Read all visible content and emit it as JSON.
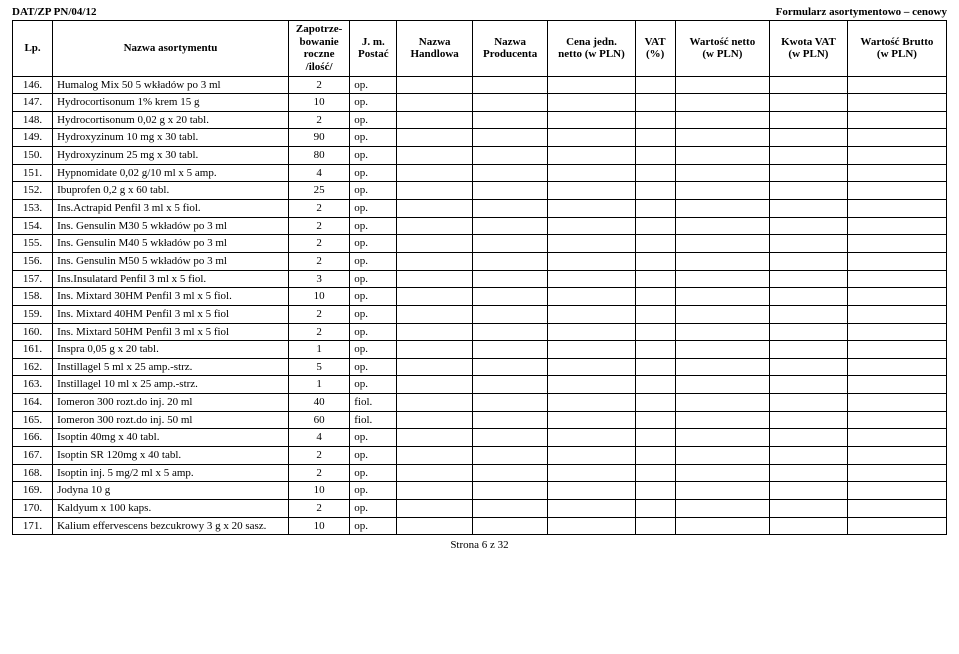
{
  "header": {
    "left": "DAT/ZP PN/04/12",
    "right": "Formularz asortymentowo – cenowy"
  },
  "columns": [
    "Lp.",
    "Nazwa asortymentu",
    "Zapotrze-\nbowanie\nroczne\n/ilość/",
    "J. m.\nPostać",
    "Nazwa\nHandlowa",
    "Nazwa\nProducenta",
    "Cena jedn.\nnetto (w PLN)",
    "VAT\n(%)",
    "Wartość netto\n(w PLN)",
    "Kwota VAT\n(w PLN)",
    "Wartość Brutto\n(w PLN)"
  ],
  "rows": [
    {
      "lp": "146.",
      "name": "Humalog Mix 50 5 wkładów po 3 ml",
      "qty": "2",
      "unit": "op."
    },
    {
      "lp": "147.",
      "name": "Hydrocortisonum 1% krem 15 g",
      "qty": "10",
      "unit": "op."
    },
    {
      "lp": "148.",
      "name": "Hydrocortisonum 0,02 g x 20 tabl.",
      "qty": "2",
      "unit": "op."
    },
    {
      "lp": "149.",
      "name": "Hydroxyzinum 10 mg x 30 tabl.",
      "qty": "90",
      "unit": "op."
    },
    {
      "lp": "150.",
      "name": "Hydroxyzinum 25 mg x 30 tabl.",
      "qty": "80",
      "unit": "op."
    },
    {
      "lp": "151.",
      "name": "Hypnomidate 0,02 g/10 ml x 5 amp.",
      "qty": "4",
      "unit": "op."
    },
    {
      "lp": "152.",
      "name": "Ibuprofen 0,2 g x 60 tabl.",
      "qty": "25",
      "unit": "op."
    },
    {
      "lp": "153.",
      "name": "Ins.Actrapid Penfil 3 ml x 5 fiol.",
      "qty": "2",
      "unit": "op."
    },
    {
      "lp": "154.",
      "name": "Ins. Gensulin M30 5 wkładów po 3 ml",
      "qty": "2",
      "unit": "op."
    },
    {
      "lp": "155.",
      "name": "Ins. Gensulin M40 5 wkładów po 3 ml",
      "qty": "2",
      "unit": "op."
    },
    {
      "lp": "156.",
      "name": "Ins. Gensulin M50 5 wkładów po 3 ml",
      "qty": "2",
      "unit": "op."
    },
    {
      "lp": "157.",
      "name": "Ins.Insulatard Penfil 3 ml x 5 fiol.",
      "qty": "3",
      "unit": "op."
    },
    {
      "lp": "158.",
      "name": "Ins. Mixtard 30HM Penfil 3 ml x 5 fiol.",
      "qty": "10",
      "unit": "op."
    },
    {
      "lp": "159.",
      "name": "Ins. Mixtard 40HM Penfil 3 ml x 5 fiol",
      "qty": "2",
      "unit": "op."
    },
    {
      "lp": "160.",
      "name": "Ins. Mixtard 50HM Penfil 3 ml x 5 fiol",
      "qty": "2",
      "unit": "op."
    },
    {
      "lp": "161.",
      "name": "Inspra 0,05 g x 20 tabl.",
      "qty": "1",
      "unit": "op."
    },
    {
      "lp": "162.",
      "name": "Instillagel 5 ml x 25 amp.-strz.",
      "qty": "5",
      "unit": "op."
    },
    {
      "lp": "163.",
      "name": "Instillagel 10 ml x 25 amp.-strz.",
      "qty": "1",
      "unit": "op."
    },
    {
      "lp": "164.",
      "name": "Iomeron 300 rozt.do inj. 20 ml",
      "qty": "40",
      "unit": "fiol."
    },
    {
      "lp": "165.",
      "name": "Iomeron 300 rozt.do inj. 50 ml",
      "qty": "60",
      "unit": "fiol."
    },
    {
      "lp": "166.",
      "name": "Isoptin 40mg x 40 tabl.",
      "qty": "4",
      "unit": "op."
    },
    {
      "lp": "167.",
      "name": "Isoptin SR 120mg x 40 tabl.",
      "qty": "2",
      "unit": "op."
    },
    {
      "lp": "168.",
      "name": "Isoptin inj. 5 mg/2 ml x 5 amp.",
      "qty": "2",
      "unit": "op."
    },
    {
      "lp": "169.",
      "name": "Jodyna 10 g",
      "qty": "10",
      "unit": "op."
    },
    {
      "lp": "170.",
      "name": "Kaldyum x 100 kaps.",
      "qty": "2",
      "unit": "op."
    },
    {
      "lp": "171.",
      "name": "Kalium effervescens bezcukrowy 3 g x 20 sasz.",
      "qty": "10",
      "unit": "op."
    }
  ],
  "footer": "Strona 6 z 32"
}
